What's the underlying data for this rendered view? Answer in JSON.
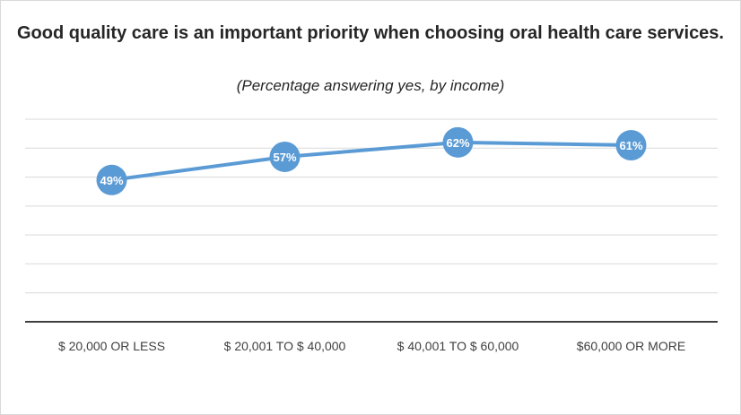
{
  "chart_data": {
    "type": "line",
    "title": "Good quality care is an important priority when choosing oral health care services.",
    "subtitle": "(Percentage answering yes, by income)",
    "categories": [
      "$ 20,000 OR LESS",
      "$ 20,001 TO $ 40,000",
      "$ 40,001 TO $ 60,000",
      "$60,000 OR MORE"
    ],
    "series": [
      {
        "values": [
          49,
          57,
          62,
          61
        ],
        "labels": [
          "49%",
          "57%",
          "62%",
          "61%"
        ]
      }
    ],
    "ylim": [
      0,
      70
    ],
    "grid": true,
    "legend": "none",
    "color": "#5b9bd5"
  }
}
